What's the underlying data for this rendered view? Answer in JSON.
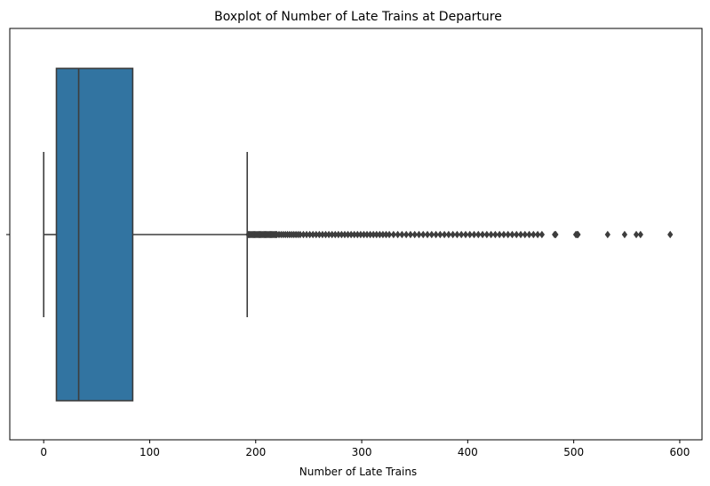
{
  "chart_data": {
    "type": "box",
    "orientation": "horizontal",
    "title": "Boxplot of Number of Late Trains at Departure",
    "xlabel": "Number of Late Trains",
    "ylabel": "",
    "xlim": [
      -32,
      621
    ],
    "xticks": [
      0,
      100,
      200,
      300,
      400,
      500,
      600
    ],
    "xtick_labels": [
      "0",
      "100",
      "200",
      "300",
      "400",
      "500",
      "600"
    ],
    "grid": false,
    "box": {
      "whisker_low": 0,
      "q1": 12,
      "median": 33,
      "q3": 84,
      "whisker_high": 192,
      "fill_color": "#3274a1",
      "line_color": "#3d3d3d"
    },
    "outliers": [
      193,
      194,
      195,
      196,
      197,
      198,
      199,
      200,
      201,
      202,
      203,
      204,
      205,
      206,
      207,
      208,
      209,
      210,
      211,
      212,
      213,
      214,
      215,
      216,
      217,
      218,
      219,
      220,
      222,
      224,
      226,
      228,
      230,
      232,
      234,
      236,
      238,
      240,
      242,
      245,
      248,
      251,
      254,
      257,
      260,
      263,
      266,
      269,
      272,
      275,
      278,
      281,
      284,
      287,
      290,
      293,
      296,
      299,
      302,
      305,
      308,
      311,
      314,
      317,
      320,
      323,
      326,
      330,
      334,
      338,
      342,
      346,
      350,
      354,
      358,
      362,
      366,
      370,
      374,
      378,
      382,
      386,
      390,
      394,
      398,
      402,
      406,
      410,
      414,
      418,
      422,
      426,
      430,
      434,
      438,
      442,
      446,
      450,
      454,
      458,
      462,
      466,
      470,
      482,
      483,
      502,
      503,
      504,
      532,
      548,
      559,
      563,
      591
    ]
  }
}
